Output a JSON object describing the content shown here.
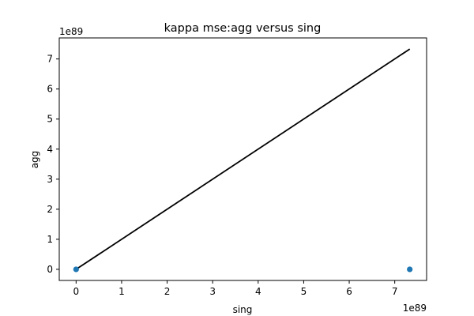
{
  "chart_data": {
    "type": "scatter",
    "title": "kappa mse:agg versus sing",
    "xlabel": "sing",
    "ylabel": "agg",
    "x_offset_label": "1e89",
    "y_offset_label": "1e89",
    "xlim": [
      -0.37,
      7.7
    ],
    "ylim": [
      -0.37,
      7.7
    ],
    "x_ticks": [
      0,
      1,
      2,
      3,
      4,
      5,
      6,
      7
    ],
    "x_tick_labels": [
      "0",
      "1",
      "2",
      "3",
      "4",
      "5",
      "6",
      "7"
    ],
    "y_ticks": [
      0,
      1,
      2,
      3,
      4,
      5,
      6,
      7
    ],
    "y_tick_labels": [
      "0",
      "1",
      "2",
      "3",
      "4",
      "5",
      "6",
      "7"
    ],
    "points": {
      "x": [
        0,
        7.33
      ],
      "y": [
        0,
        0
      ],
      "color": "#1f77b4"
    },
    "line": {
      "x": [
        0,
        7.33
      ],
      "y": [
        0,
        7.33
      ],
      "color": "#000000"
    },
    "grid": false,
    "legend": "none"
  }
}
